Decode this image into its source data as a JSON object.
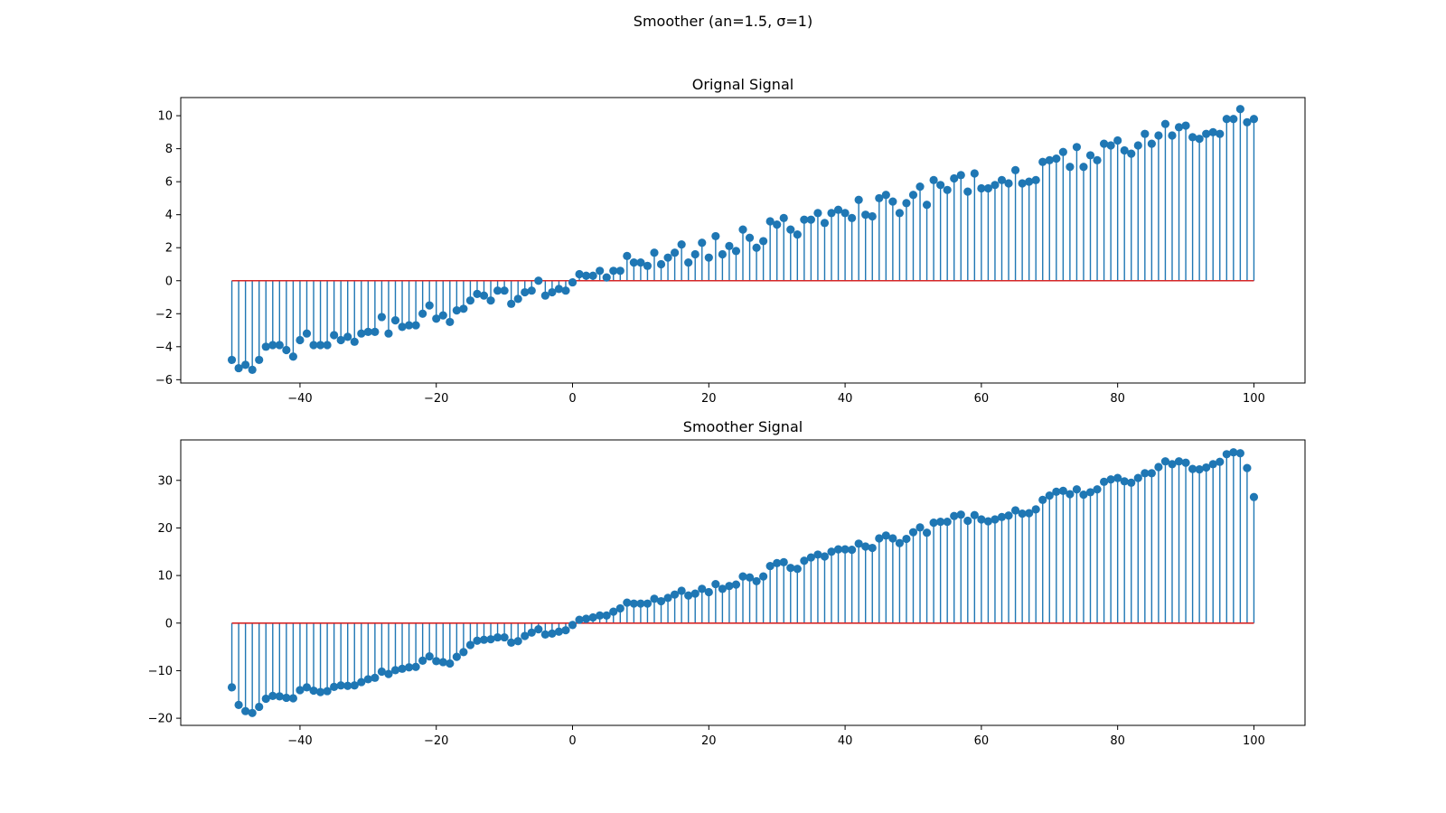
{
  "figure": {
    "title": "Smoother (an=1.5, σ=1)"
  },
  "colors": {
    "stem": "#1f77b4",
    "marker": "#1f77b4",
    "baseline": "#d62728",
    "axis": "#000000",
    "background": "#ffffff"
  },
  "chart_data": [
    {
      "type": "stem",
      "title": "Orignal Signal",
      "xlabel": "",
      "ylabel": "",
      "xlim": [
        -57.5,
        107.5
      ],
      "ylim": [
        -6.2,
        11.1
      ],
      "xticks": [
        -40,
        -20,
        0,
        20,
        40,
        60,
        80,
        100
      ],
      "yticks": [
        -6,
        -4,
        -2,
        0,
        2,
        4,
        6,
        8,
        10
      ],
      "grid": false,
      "legend": "none",
      "x_start": -50,
      "x_step": 1,
      "values": [
        -4.8,
        -5.3,
        -5.1,
        -5.4,
        -4.8,
        -4.0,
        -3.9,
        -3.9,
        -4.2,
        -4.6,
        -3.6,
        -3.2,
        -3.9,
        -3.9,
        -3.9,
        -3.3,
        -3.6,
        -3.4,
        -3.7,
        -3.2,
        -3.1,
        -3.1,
        -2.2,
        -3.2,
        -2.4,
        -2.8,
        -2.7,
        -2.7,
        -2.0,
        -1.5,
        -2.3,
        -2.1,
        -2.5,
        -1.8,
        -1.7,
        -1.2,
        -0.8,
        -0.9,
        -1.2,
        -0.6,
        -0.6,
        -1.4,
        -1.1,
        -0.7,
        -0.6,
        0.0,
        -0.9,
        -0.7,
        -0.5,
        -0.6,
        -0.1,
        0.4,
        0.3,
        0.3,
        0.6,
        0.2,
        0.6,
        0.6,
        1.5,
        1.1,
        1.1,
        0.9,
        1.7,
        1.0,
        1.4,
        1.7,
        2.2,
        1.1,
        1.6,
        2.3,
        1.4,
        2.7,
        1.6,
        2.1,
        1.8,
        3.1,
        2.6,
        2.0,
        2.4,
        3.6,
        3.4,
        3.8,
        3.1,
        2.8,
        3.7,
        3.7,
        4.1,
        3.5,
        4.1,
        4.3,
        4.1,
        3.8,
        4.9,
        4.0,
        3.9,
        5.0,
        5.2,
        4.8,
        4.1,
        4.7,
        5.2,
        5.7,
        4.6,
        6.1,
        5.8,
        5.5,
        6.2,
        6.4,
        5.4,
        6.5,
        5.6,
        5.6,
        5.8,
        6.1,
        5.9,
        6.7,
        5.9,
        6.0,
        6.1,
        7.2,
        7.3,
        7.4,
        7.8,
        6.9,
        8.1,
        6.9,
        7.6,
        7.3,
        8.3,
        8.2,
        8.5,
        7.9,
        7.7,
        8.2,
        8.9,
        8.3,
        8.8,
        9.5,
        8.8,
        9.3,
        9.4,
        8.7,
        8.6,
        8.9,
        9.0,
        8.9,
        9.8,
        9.8,
        10.4,
        9.6,
        9.8
      ]
    },
    {
      "type": "stem",
      "title": "Smoother Signal",
      "xlabel": "",
      "ylabel": "",
      "xlim": [
        -57.5,
        107.5
      ],
      "ylim": [
        -21.5,
        38.5
      ],
      "xticks": [
        -40,
        -20,
        0,
        20,
        40,
        60,
        80,
        100
      ],
      "yticks": [
        -20,
        -10,
        0,
        10,
        20,
        30
      ],
      "grid": false,
      "legend": "none",
      "x_start": -50,
      "x_step": 1,
      "values": [
        -13.5,
        -17.2,
        -18.5,
        -18.9,
        -17.6,
        -15.9,
        -15.3,
        -15.4,
        -15.7,
        -15.8,
        -14.1,
        -13.5,
        -14.2,
        -14.5,
        -14.3,
        -13.4,
        -13.1,
        -13.2,
        -13.1,
        -12.4,
        -11.8,
        -11.5,
        -10.2,
        -10.7,
        -9.9,
        -9.6,
        -9.3,
        -9.2,
        -7.9,
        -7.0,
        -8.0,
        -8.2,
        -8.5,
        -7.1,
        -6.1,
        -4.6,
        -3.7,
        -3.5,
        -3.4,
        -3.0,
        -3.0,
        -4.1,
        -3.8,
        -2.7,
        -2.0,
        -1.3,
        -2.4,
        -2.2,
        -1.8,
        -1.5,
        -0.4,
        0.7,
        0.9,
        1.2,
        1.6,
        1.6,
        2.4,
        3.1,
        4.3,
        4.1,
        4.1,
        4.1,
        5.1,
        4.6,
        5.3,
        6.0,
        6.8,
        5.8,
        6.2,
        7.2,
        6.5,
        8.2,
        7.2,
        7.8,
        8.1,
        9.8,
        9.6,
        8.8,
        9.8,
        12.0,
        12.6,
        12.8,
        11.6,
        11.4,
        13.1,
        13.8,
        14.4,
        14.0,
        15.0,
        15.5,
        15.5,
        15.4,
        16.7,
        16.1,
        15.8,
        17.8,
        18.4,
        17.8,
        16.8,
        17.7,
        19.1,
        20.1,
        19.0,
        21.1,
        21.3,
        21.3,
        22.5,
        22.8,
        21.5,
        22.7,
        21.8,
        21.4,
        21.8,
        22.3,
        22.6,
        23.7,
        23.0,
        23.1,
        23.9,
        25.9,
        26.8,
        27.6,
        27.8,
        27.1,
        28.1,
        27.0,
        27.5,
        28.1,
        29.7,
        30.2,
        30.5,
        29.8,
        29.5,
        30.5,
        31.5,
        31.5,
        32.8,
        34.0,
        33.4,
        34.0,
        33.7,
        32.4,
        32.3,
        32.7,
        33.4,
        33.9,
        35.5,
        35.9,
        35.7,
        32.6,
        26.5
      ]
    }
  ]
}
